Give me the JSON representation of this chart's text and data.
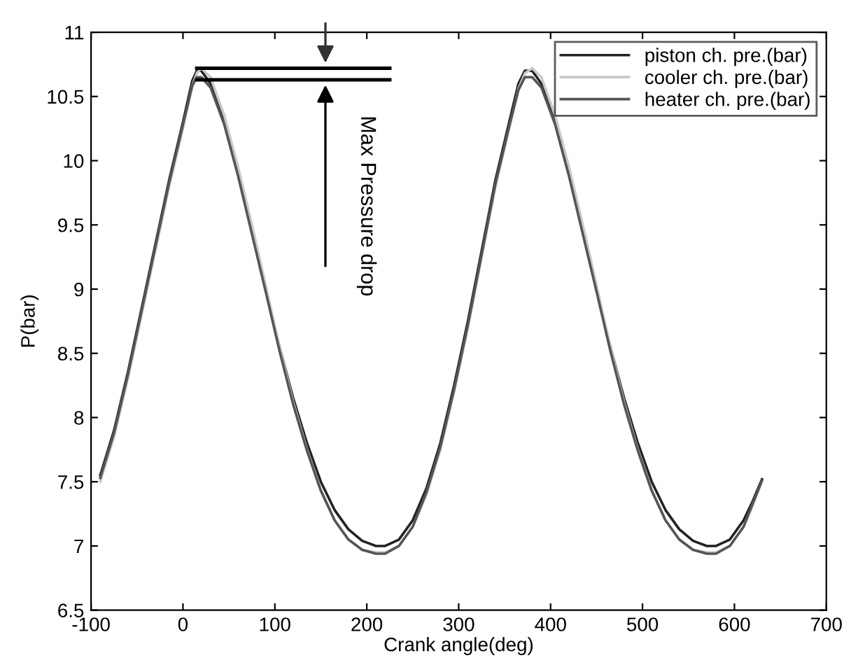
{
  "chart_data": {
    "type": "line",
    "xlabel": "Crank angle(deg)",
    "ylabel": "P(bar)",
    "x": [
      -90,
      -75,
      -60,
      -45,
      -30,
      -15,
      0,
      10,
      15,
      20,
      30,
      45,
      60,
      75,
      90,
      105,
      120,
      135,
      150,
      165,
      180,
      195,
      210,
      220,
      235,
      250,
      265,
      280,
      295,
      310,
      325,
      340,
      355,
      365,
      372,
      380,
      390,
      405,
      420,
      435,
      450,
      465,
      480,
      495,
      510,
      525,
      540,
      555,
      570,
      580,
      595,
      610,
      620,
      630
    ],
    "series": [
      {
        "name": "piston ch. pre.(bar)",
        "color": "#222222",
        "values": [
          7.55,
          7.9,
          8.35,
          8.85,
          9.35,
          9.85,
          10.3,
          10.62,
          10.7,
          10.7,
          10.6,
          10.3,
          9.9,
          9.45,
          9.0,
          8.55,
          8.15,
          7.8,
          7.5,
          7.28,
          7.13,
          7.04,
          7.0,
          7.0,
          7.05,
          7.2,
          7.45,
          7.8,
          8.25,
          8.75,
          9.3,
          9.85,
          10.3,
          10.6,
          10.7,
          10.7,
          10.6,
          10.3,
          9.9,
          9.45,
          9.0,
          8.55,
          8.15,
          7.8,
          7.5,
          7.28,
          7.13,
          7.04,
          7.0,
          7.0,
          7.05,
          7.2,
          7.35,
          7.52
        ]
      },
      {
        "name": "cooler ch. pre.(bar)",
        "color": "#c8c8c8",
        "values": [
          7.5,
          7.85,
          8.3,
          8.8,
          9.3,
          9.8,
          10.25,
          10.58,
          10.68,
          10.72,
          10.65,
          10.35,
          9.95,
          9.5,
          9.03,
          8.55,
          8.12,
          7.75,
          7.44,
          7.2,
          7.05,
          6.97,
          6.95,
          6.95,
          7.0,
          7.15,
          7.4,
          7.75,
          8.2,
          8.7,
          9.25,
          9.8,
          10.25,
          10.56,
          10.68,
          10.72,
          10.65,
          10.35,
          9.95,
          9.5,
          9.03,
          8.55,
          8.12,
          7.75,
          7.44,
          7.2,
          7.05,
          6.97,
          6.95,
          6.95,
          7.0,
          7.15,
          7.32,
          7.5
        ]
      },
      {
        "name": "heater ch. pre.(bar)",
        "color": "#555555",
        "values": [
          7.53,
          7.88,
          8.33,
          8.83,
          9.33,
          9.83,
          10.28,
          10.58,
          10.65,
          10.65,
          10.57,
          10.28,
          9.88,
          9.43,
          8.98,
          8.52,
          8.1,
          7.74,
          7.43,
          7.2,
          7.05,
          6.97,
          6.94,
          6.94,
          7.0,
          7.15,
          7.42,
          7.77,
          8.22,
          8.72,
          9.27,
          9.82,
          10.27,
          10.55,
          10.65,
          10.65,
          10.57,
          10.28,
          9.88,
          9.43,
          8.98,
          8.52,
          8.1,
          7.74,
          7.43,
          7.2,
          7.05,
          6.97,
          6.94,
          6.94,
          7.0,
          7.15,
          7.33,
          7.51
        ]
      }
    ],
    "xlim": [
      -100,
      700
    ],
    "xticks": [
      -100,
      0,
      100,
      200,
      300,
      400,
      500,
      600,
      700
    ],
    "ylim": [
      6.5,
      11
    ],
    "yticks": [
      6.5,
      7,
      7.5,
      8,
      8.5,
      9,
      9.5,
      10,
      10.5,
      11
    ],
    "annotations": [
      "Max Pressure drop"
    ],
    "legend": "top right",
    "grid": false,
    "line_style": "solid",
    "marker": "none"
  }
}
